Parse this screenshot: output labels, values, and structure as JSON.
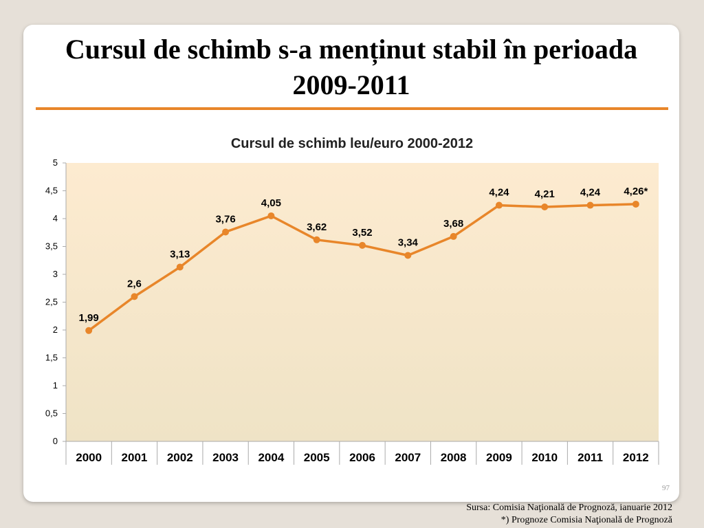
{
  "slide": {
    "title": "Cursul de schimb s-a menținut stabil în perioada 2009-2011",
    "page_number": "97",
    "source_line1": "Sursa: Comisia Naţională de Prognoză,  ianuarie 2012",
    "source_line2": "*) Prognoze Comisia Naţională de Prognoză"
  },
  "colors": {
    "accent": "#e8862a",
    "line": "#e8862a",
    "plot_top": "#fdebd0",
    "plot_bottom": "#efe3c6"
  },
  "chart_data": {
    "type": "line",
    "title": "Cursul de schimb leu/euro 2000-2012",
    "categories": [
      "2000",
      "2001",
      "2002",
      "2003",
      "2004",
      "2005",
      "2006",
      "2007",
      "2008",
      "2009",
      "2010",
      "2011",
      "2012"
    ],
    "values": [
      1.99,
      2.6,
      3.13,
      3.76,
      4.05,
      3.62,
      3.52,
      3.34,
      3.68,
      4.24,
      4.21,
      4.24,
      4.26
    ],
    "data_labels": [
      "1,99",
      "2,6",
      "3,13",
      "3,76",
      "4,05",
      "3,62",
      "3,52",
      "3,34",
      "3,68",
      "4,24",
      "4,21",
      "4,24",
      "4,26*"
    ],
    "ylim": [
      0,
      5
    ],
    "yticks": [
      0,
      0.5,
      1,
      1.5,
      2,
      2.5,
      3,
      3.5,
      4,
      4.5,
      5
    ],
    "ytick_labels": [
      "0",
      "0,5",
      "1",
      "1,5",
      "2",
      "2,5",
      "3",
      "3,5",
      "4",
      "4,5",
      "5"
    ],
    "grid": false,
    "legend": "none"
  }
}
